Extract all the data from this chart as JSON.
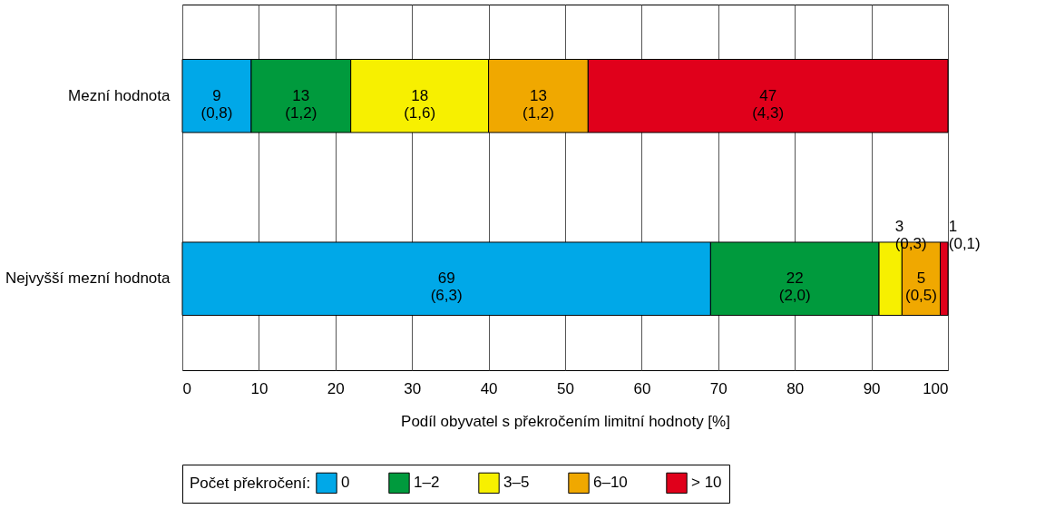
{
  "chart_data": {
    "type": "bar",
    "orientation": "horizontal",
    "stacked": true,
    "categories": [
      "Mezní hodnota",
      "Nejvyšší mezní hodnota"
    ],
    "xlabel": "Podíl obyvatel s překročením limitní hodnoty [%]",
    "legend_title": "Počet překročení:",
    "series": [
      {
        "name": "0",
        "color": "#00a8e8",
        "values": [
          9,
          69
        ],
        "value_labels": [
          "9\n(0,8)",
          "69\n(6,3)"
        ]
      },
      {
        "name": "1–2",
        "color": "#009a3d",
        "values": [
          13,
          22
        ],
        "value_labels": [
          "13\n(1,2)",
          "22\n(2,0)"
        ]
      },
      {
        "name": "3–5",
        "color": "#f7f000",
        "values": [
          18,
          3
        ],
        "value_labels": [
          "18\n(1,6)",
          "3\n(0,3)"
        ]
      },
      {
        "name": "6–10",
        "color": "#f0a800",
        "values": [
          13,
          5
        ],
        "value_labels": [
          "13\n(1,2)",
          "5\n(0,5)"
        ]
      },
      {
        "name": "> 10",
        "color": "#e0001b",
        "values": [
          47,
          1
        ],
        "value_labels": [
          "47\n(4,3)",
          "1\n(0,1)"
        ]
      }
    ],
    "xlim": [
      0,
      100
    ],
    "xticks": [
      0,
      10,
      20,
      30,
      40,
      50,
      60,
      70,
      80,
      90,
      100
    ],
    "grid": "x",
    "legend": "bottom"
  }
}
